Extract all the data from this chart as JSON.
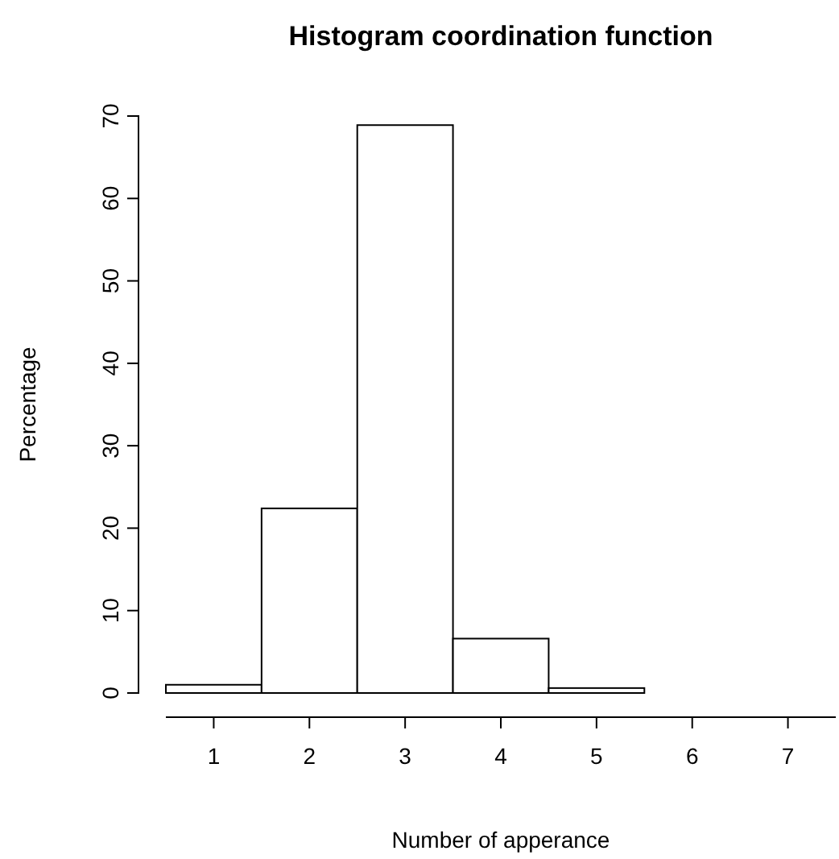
{
  "chart_data": {
    "type": "histogram",
    "title": "Histogram coordination function",
    "xlabel": "Number of apperance",
    "ylabel": "Percentage",
    "bins": [
      0.5,
      1.5,
      2.5,
      3.5,
      4.5,
      5.5,
      6.5,
      7.5
    ],
    "values": [
      1.0,
      22.4,
      68.9,
      6.6,
      0.6,
      0,
      0
    ],
    "color": "#ffffff",
    "xlim": [
      0.5,
      7.5
    ],
    "xticks": [
      1,
      2,
      3,
      4,
      5,
      6,
      7
    ],
    "ylim": [
      0,
      70
    ],
    "yticks": [
      0,
      10,
      20,
      30,
      40,
      50,
      60,
      70
    ],
    "grid": false
  }
}
